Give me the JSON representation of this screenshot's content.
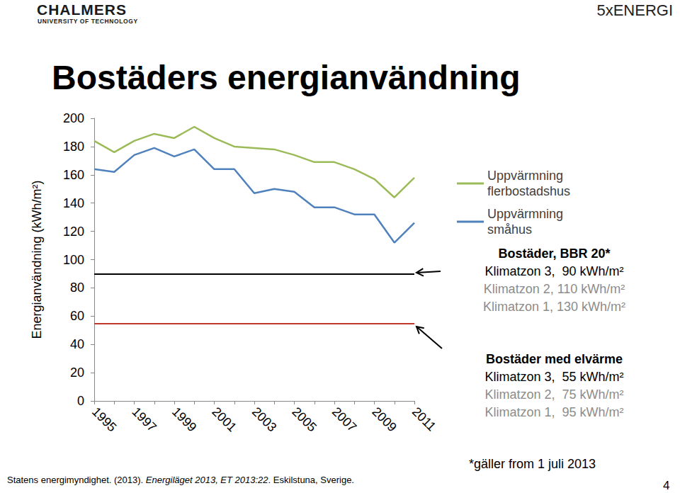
{
  "header": {
    "logo": "CHALMERS",
    "logo_subtitle": "UNIVERSITY OF TECHNOLOGY",
    "brand": "5xENERGI"
  },
  "chart_data": {
    "type": "line",
    "title": "Bostäders energianvändning",
    "y_label": "Energianvändning (kWh/m²)",
    "categories": [
      "1995",
      null,
      "1997",
      null,
      "1999",
      null,
      "2001",
      null,
      "2003",
      null,
      "2005",
      null,
      "2007",
      null,
      "2009",
      null,
      "2011"
    ],
    "series": [
      {
        "name": "Uppvärmning flerbostadshus",
        "color": "#9bbb59",
        "values": [
          184,
          176,
          184,
          189,
          186,
          194,
          186,
          180,
          179,
          178,
          174,
          169,
          169,
          164,
          157,
          144,
          158
        ]
      },
      {
        "name": "Uppvärmning småhus",
        "color": "#4f81bd",
        "values": [
          164,
          162,
          174,
          179,
          173,
          178,
          164,
          164,
          147,
          150,
          148,
          137,
          137,
          132,
          132,
          112,
          126
        ]
      }
    ],
    "reference_lines": [
      {
        "value": 90,
        "color": "#000000"
      },
      {
        "value": 55,
        "color": "#c0392b"
      }
    ],
    "ylim": [
      0,
      200
    ],
    "yticks": [
      0,
      20,
      40,
      60,
      80,
      100,
      120,
      140,
      160,
      180,
      200
    ],
    "grid": false,
    "legend": "right"
  },
  "annotations": [
    {
      "title": "Bostäder, BBR 20*",
      "lines": [
        "Klimatzon 3,  90 kWh/m²",
        "Klimatzon 2, 110 kWh/m²",
        "Klimatzon 1, 130 kWh/m²"
      ]
    },
    {
      "title": "Bostäder med elvärme",
      "lines": [
        "Klimatzon 3,  55 kWh/m²",
        "Klimatzon 2,  75 kWh/m²",
        "Klimatzon 1,  95 kWh/m²"
      ]
    }
  ],
  "source": {
    "before": "Statens energimyndighet. (2013). ",
    "italic": "Energiläget 2013, ET 2013:22",
    "after": ". Eskilstuna, Sverige."
  },
  "footnote": "*gäller from 1 juli 2013",
  "page": "4"
}
